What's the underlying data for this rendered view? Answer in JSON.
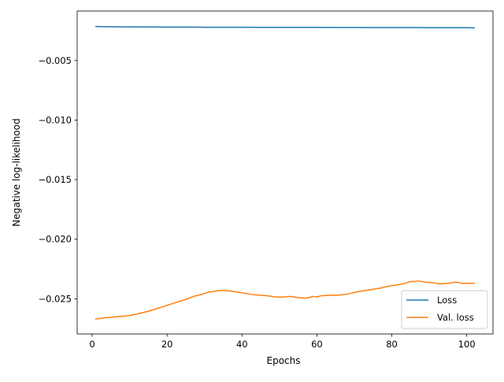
{
  "chart_data": {
    "type": "line",
    "xlabel": "Epochs",
    "ylabel": "Negative log-likelihood",
    "xlim": [
      -4,
      107
    ],
    "ylim": [
      -0.02795,
      -0.00085
    ],
    "x_ticks": [
      {
        "value": 0,
        "label": "0"
      },
      {
        "value": 20,
        "label": "20"
      },
      {
        "value": 40,
        "label": "40"
      },
      {
        "value": 60,
        "label": "60"
      },
      {
        "value": 80,
        "label": "80"
      },
      {
        "value": 100,
        "label": "100"
      }
    ],
    "y_ticks": [
      {
        "value": -0.005,
        "label": "−0.005"
      },
      {
        "value": -0.01,
        "label": "−0.010"
      },
      {
        "value": -0.015,
        "label": "−0.015"
      },
      {
        "value": -0.02,
        "label": "−0.020"
      },
      {
        "value": -0.025,
        "label": "−0.025"
      }
    ],
    "grid": false,
    "legend_position": "bottom-right",
    "series": [
      {
        "name": "Loss",
        "color": "#1f77b4",
        "x": [
          1,
          5,
          10,
          15,
          20,
          25,
          30,
          35,
          40,
          45,
          50,
          55,
          60,
          65,
          70,
          75,
          80,
          85,
          90,
          95,
          100,
          102
        ],
        "y": [
          -0.00215,
          -0.00217,
          -0.00218,
          -0.00219,
          -0.0022,
          -0.0022,
          -0.00221,
          -0.00221,
          -0.00221,
          -0.00222,
          -0.00222,
          -0.00222,
          -0.00222,
          -0.00223,
          -0.00223,
          -0.00224,
          -0.00224,
          -0.00224,
          -0.00225,
          -0.00225,
          -0.00225,
          -0.00226
        ]
      },
      {
        "name": "Val. loss",
        "color": "#ff7f0e",
        "x": [
          1,
          3,
          5,
          7,
          9,
          11,
          13,
          15,
          17,
          19,
          21,
          23,
          25,
          27,
          29,
          31,
          33,
          35,
          37,
          39,
          41,
          43,
          45,
          47,
          49,
          51,
          53,
          55,
          57,
          59,
          60,
          61,
          63,
          65,
          67,
          69,
          71,
          73,
          75,
          77,
          79,
          81,
          83,
          84,
          85,
          86,
          87,
          88,
          89,
          91,
          93,
          95,
          97,
          98,
          99,
          101,
          102
        ],
        "y": [
          -0.0267,
          -0.0266,
          -0.02655,
          -0.0265,
          -0.02645,
          -0.02635,
          -0.0262,
          -0.02605,
          -0.02585,
          -0.02565,
          -0.02545,
          -0.02525,
          -0.02505,
          -0.0248,
          -0.02465,
          -0.02445,
          -0.02435,
          -0.0243,
          -0.02435,
          -0.02445,
          -0.02455,
          -0.02465,
          -0.0247,
          -0.02475,
          -0.02485,
          -0.02485,
          -0.0248,
          -0.0249,
          -0.02495,
          -0.0248,
          -0.02485,
          -0.02475,
          -0.0247,
          -0.0247,
          -0.02465,
          -0.02455,
          -0.0244,
          -0.0243,
          -0.0242,
          -0.0241,
          -0.02395,
          -0.02385,
          -0.02375,
          -0.02365,
          -0.02355,
          -0.02355,
          -0.0235,
          -0.02355,
          -0.0236,
          -0.02365,
          -0.02375,
          -0.0237,
          -0.0236,
          -0.02365,
          -0.0237,
          -0.0237,
          -0.0237
        ]
      }
    ]
  }
}
